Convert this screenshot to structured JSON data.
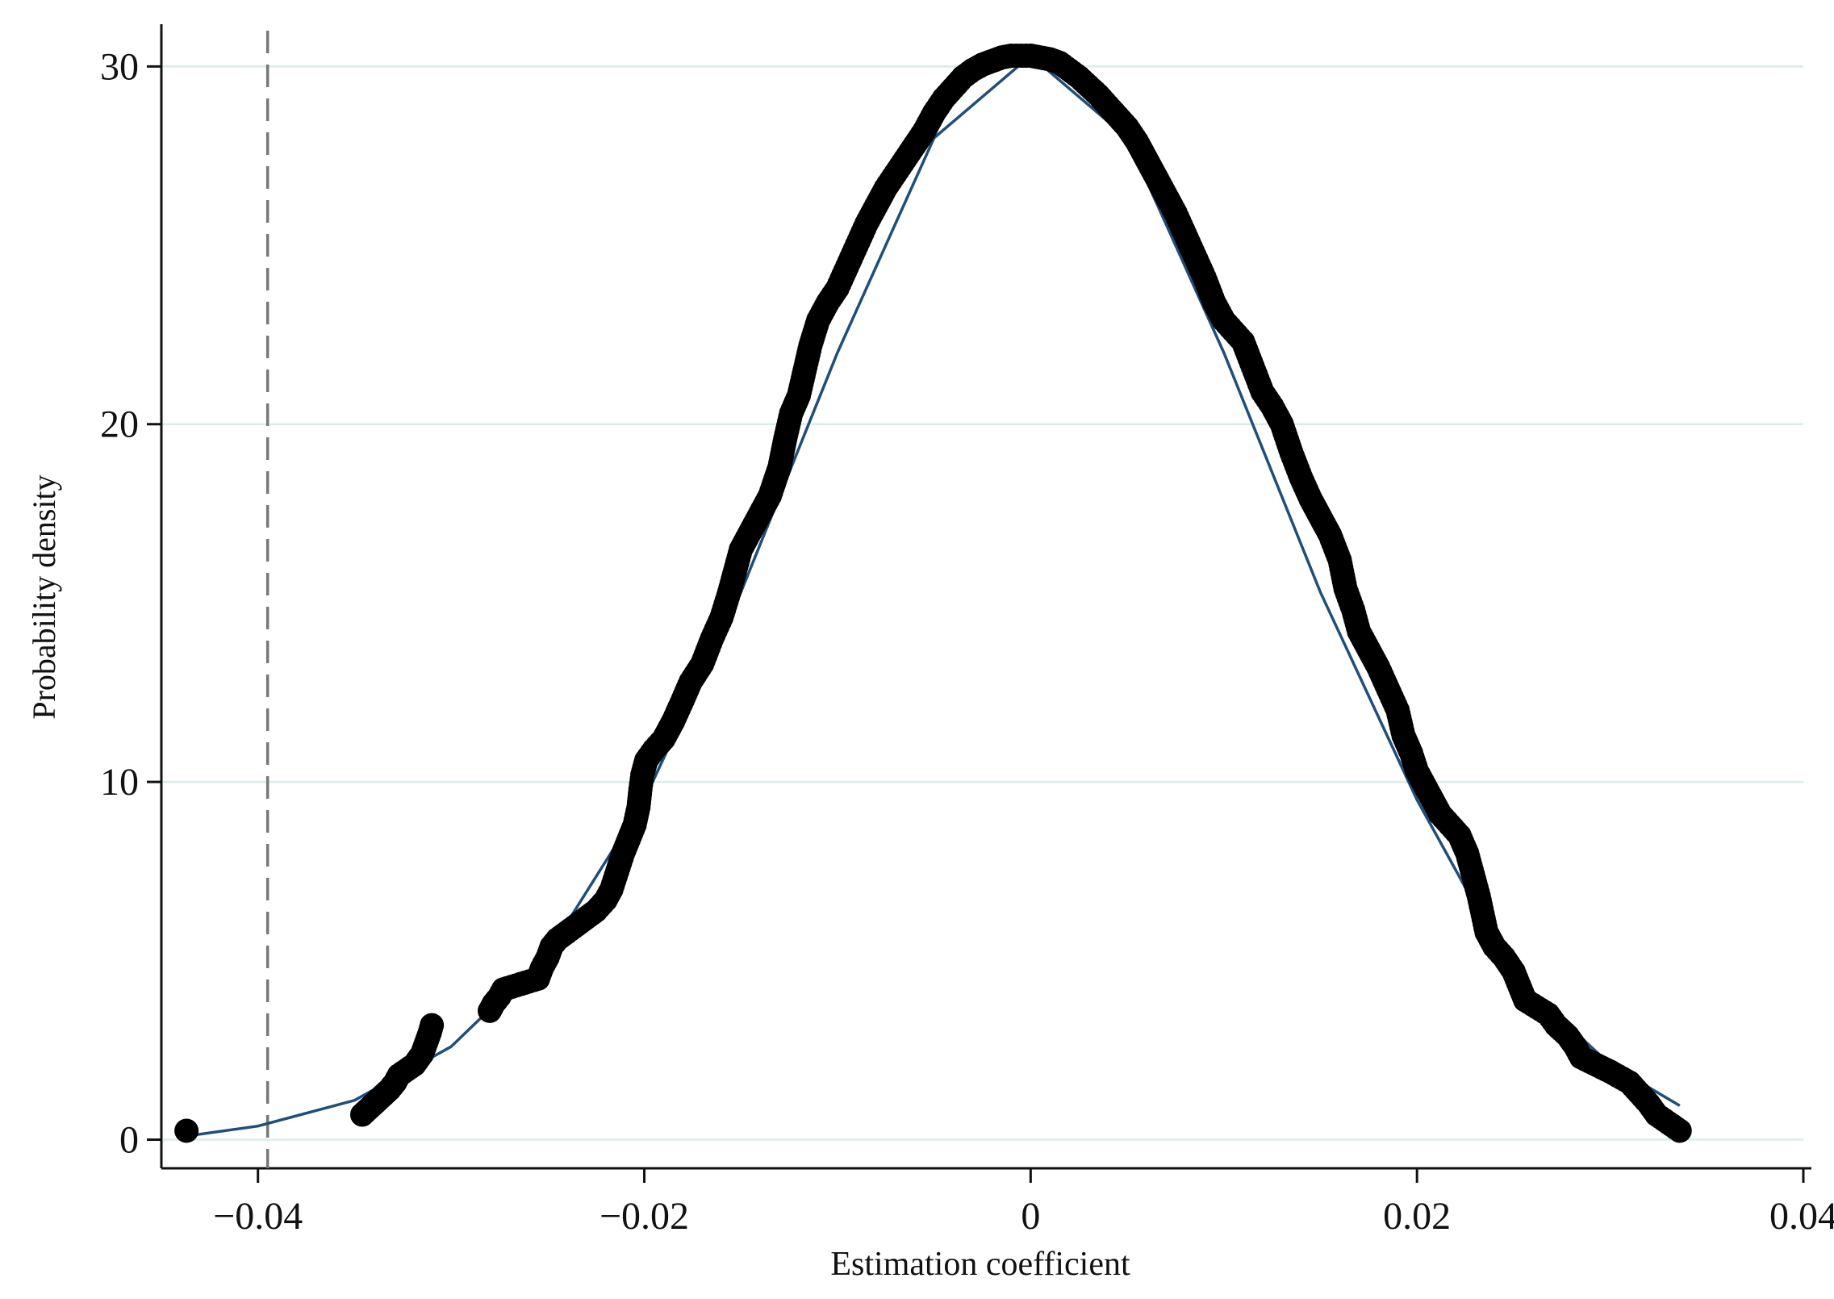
{
  "chart_data": {
    "type": "scatter",
    "xlabel": "Estimation coefficient",
    "ylabel": "Probability density",
    "xlim": [
      -0.045,
      0.04
    ],
    "ylim": [
      -0.8,
      31.0
    ],
    "x_ticks": [
      -0.04,
      -0.02,
      0,
      0.02,
      0.04
    ],
    "x_tick_labels": [
      "−0.04",
      "−0.02",
      "0",
      "0.02",
      "0.04"
    ],
    "y_ticks": [
      0,
      10,
      20,
      30
    ],
    "y_tick_labels": [
      "0",
      "10",
      "20",
      "30"
    ],
    "grid": "horizontal",
    "reference_line": {
      "x": -0.0395,
      "style": "dashed",
      "color": "#777777"
    },
    "colors": {
      "points": "#000000",
      "fitted_curve": "#1f4e79",
      "grid": "#d9ecec"
    },
    "series": [
      {
        "kind": "points",
        "points": [
          [
            -0.0437,
            0.25
          ],
          [
            -0.0346,
            0.7
          ],
          [
            -0.0342,
            0.9
          ],
          [
            -0.0338,
            1.1
          ],
          [
            -0.0332,
            1.4
          ],
          [
            -0.0329,
            1.6
          ],
          [
            -0.0327,
            1.8
          ],
          [
            -0.0319,
            2.1
          ],
          [
            -0.0315,
            2.4
          ],
          [
            -0.0313,
            2.7
          ],
          [
            -0.0311,
            3.0
          ],
          [
            -0.031,
            3.2
          ],
          [
            -0.028,
            3.6
          ],
          [
            -0.0278,
            3.8
          ],
          [
            -0.0275,
            4.0
          ],
          [
            -0.0273,
            4.2
          ],
          [
            -0.0255,
            4.5
          ],
          [
            -0.0253,
            4.8
          ],
          [
            -0.025,
            5.1
          ],
          [
            -0.0248,
            5.4
          ],
          [
            -0.0245,
            5.6
          ],
          [
            -0.024,
            5.8
          ],
          [
            -0.0235,
            6.0
          ],
          [
            -0.023,
            6.2
          ],
          [
            -0.0225,
            6.4
          ],
          [
            -0.022,
            6.7
          ],
          [
            -0.0217,
            7.0
          ],
          [
            -0.0214,
            7.5
          ],
          [
            -0.0211,
            8.0
          ],
          [
            -0.0208,
            8.4
          ],
          [
            -0.0205,
            8.8
          ],
          [
            -0.0203,
            9.3
          ],
          [
            -0.0202,
            9.8
          ],
          [
            -0.0201,
            10.2
          ],
          [
            -0.0199,
            10.6
          ],
          [
            -0.0195,
            10.9
          ],
          [
            -0.019,
            11.2
          ],
          [
            -0.0185,
            11.7
          ],
          [
            -0.018,
            12.3
          ],
          [
            -0.0176,
            12.8
          ],
          [
            -0.017,
            13.3
          ],
          [
            -0.0165,
            14.0
          ],
          [
            -0.016,
            14.6
          ],
          [
            -0.0156,
            15.3
          ],
          [
            -0.0153,
            15.9
          ],
          [
            -0.015,
            16.5
          ],
          [
            -0.0145,
            17.0
          ],
          [
            -0.014,
            17.5
          ],
          [
            -0.0135,
            18.0
          ],
          [
            -0.013,
            18.8
          ],
          [
            -0.0127,
            19.6
          ],
          [
            -0.0124,
            20.3
          ],
          [
            -0.012,
            20.8
          ],
          [
            -0.0117,
            21.5
          ],
          [
            -0.0114,
            22.2
          ],
          [
            -0.011,
            22.9
          ],
          [
            -0.0105,
            23.4
          ],
          [
            -0.01,
            23.8
          ],
          [
            -0.0095,
            24.4
          ],
          [
            -0.009,
            25.0
          ],
          [
            -0.0085,
            25.6
          ],
          [
            -0.008,
            26.1
          ],
          [
            -0.0075,
            26.6
          ],
          [
            -0.007,
            27.0
          ],
          [
            -0.0065,
            27.4
          ],
          [
            -0.006,
            27.8
          ],
          [
            -0.0055,
            28.2
          ],
          [
            -0.005,
            28.7
          ],
          [
            -0.0045,
            29.1
          ],
          [
            -0.004,
            29.4
          ],
          [
            -0.0035,
            29.7
          ],
          [
            -0.003,
            29.9
          ],
          [
            -0.0025,
            30.05
          ],
          [
            -0.002,
            30.15
          ],
          [
            -0.0015,
            30.25
          ],
          [
            -0.001,
            30.3
          ],
          [
            -0.0005,
            30.3
          ],
          [
            0.0,
            30.3
          ],
          [
            0.0005,
            30.25
          ],
          [
            0.001,
            30.2
          ],
          [
            0.0015,
            30.1
          ],
          [
            0.002,
            29.9
          ],
          [
            0.0025,
            29.7
          ],
          [
            0.003,
            29.45
          ],
          [
            0.0035,
            29.2
          ],
          [
            0.004,
            28.9
          ],
          [
            0.0045,
            28.6
          ],
          [
            0.005,
            28.3
          ],
          [
            0.0055,
            27.9
          ],
          [
            0.006,
            27.4
          ],
          [
            0.0065,
            26.9
          ],
          [
            0.007,
            26.4
          ],
          [
            0.0075,
            25.9
          ],
          [
            0.008,
            25.3
          ],
          [
            0.0085,
            24.7
          ],
          [
            0.009,
            24.1
          ],
          [
            0.0095,
            23.4
          ],
          [
            0.01,
            22.9
          ],
          [
            0.0105,
            22.6
          ],
          [
            0.011,
            22.3
          ],
          [
            0.0115,
            21.6
          ],
          [
            0.012,
            20.9
          ],
          [
            0.0125,
            20.5
          ],
          [
            0.013,
            20.0
          ],
          [
            0.0135,
            19.2
          ],
          [
            0.014,
            18.5
          ],
          [
            0.0145,
            17.9
          ],
          [
            0.015,
            17.4
          ],
          [
            0.0155,
            16.9
          ],
          [
            0.016,
            16.2
          ],
          [
            0.0163,
            15.4
          ],
          [
            0.0167,
            14.8
          ],
          [
            0.017,
            14.2
          ],
          [
            0.0175,
            13.7
          ],
          [
            0.018,
            13.2
          ],
          [
            0.0185,
            12.6
          ],
          [
            0.019,
            12.0
          ],
          [
            0.0193,
            11.3
          ],
          [
            0.0197,
            10.8
          ],
          [
            0.02,
            10.3
          ],
          [
            0.0204,
            9.9
          ],
          [
            0.0208,
            9.5
          ],
          [
            0.0212,
            9.1
          ],
          [
            0.0217,
            8.8
          ],
          [
            0.0222,
            8.5
          ],
          [
            0.0226,
            8.0
          ],
          [
            0.0229,
            7.4
          ],
          [
            0.0232,
            6.8
          ],
          [
            0.0234,
            6.3
          ],
          [
            0.0236,
            5.8
          ],
          [
            0.024,
            5.4
          ],
          [
            0.0245,
            5.1
          ],
          [
            0.025,
            4.7
          ],
          [
            0.0253,
            4.3
          ],
          [
            0.0256,
            3.9
          ],
          [
            0.0268,
            3.5
          ],
          [
            0.0272,
            3.2
          ],
          [
            0.0278,
            2.9
          ],
          [
            0.0282,
            2.6
          ],
          [
            0.0285,
            2.3
          ],
          [
            0.03,
            1.9
          ],
          [
            0.031,
            1.6
          ],
          [
            0.0315,
            1.3
          ],
          [
            0.032,
            1.0
          ],
          [
            0.0324,
            0.7
          ],
          [
            0.0336,
            0.25
          ]
        ]
      },
      {
        "kind": "fitted_curve",
        "points": [
          [
            -0.0437,
            0.1
          ],
          [
            -0.04,
            0.38
          ],
          [
            -0.035,
            1.1
          ],
          [
            -0.03,
            2.6
          ],
          [
            -0.025,
            5.2
          ],
          [
            -0.02,
            9.5
          ],
          [
            -0.015,
            15.3
          ],
          [
            -0.01,
            22.0
          ],
          [
            -0.005,
            28.0
          ],
          [
            0.0,
            30.3
          ],
          [
            0.005,
            28.0
          ],
          [
            0.01,
            22.0
          ],
          [
            0.015,
            15.3
          ],
          [
            0.02,
            9.5
          ],
          [
            0.025,
            4.6
          ],
          [
            0.03,
            2.1
          ],
          [
            0.0336,
            0.95
          ]
        ]
      }
    ]
  }
}
